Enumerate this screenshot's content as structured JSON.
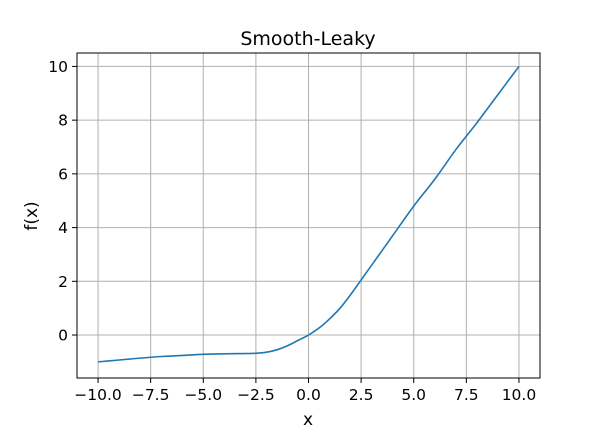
{
  "chart_data": {
    "type": "line",
    "title": "Smooth-Leaky",
    "xlabel": "x",
    "ylabel": "f(x)",
    "xlim": [
      -11,
      11
    ],
    "ylim": [
      -1.6,
      10.5
    ],
    "grid": true,
    "x_ticks": [
      -10.0,
      -7.5,
      -5.0,
      -2.5,
      0.0,
      2.5,
      5.0,
      7.5,
      10.0
    ],
    "x_tick_labels": [
      "−10.0",
      "−7.5",
      "−5.0",
      "−2.5",
      "0.0",
      "2.5",
      "5.0",
      "7.5",
      "10.0"
    ],
    "y_ticks": [
      0,
      2,
      4,
      6,
      8,
      10
    ],
    "y_tick_labels": [
      "0",
      "2",
      "4",
      "6",
      "8",
      "10"
    ],
    "series": [
      {
        "color": "#1f77b4",
        "x": [
          -10,
          -9,
          -8,
          -7,
          -6,
          -5,
          -4,
          -3,
          -2.5,
          -2,
          -1.5,
          -1,
          -0.5,
          0,
          0.5,
          1,
          1.5,
          2,
          2.5,
          3,
          3.5,
          4,
          5,
          6,
          7,
          8,
          9,
          10
        ],
        "y": [
          -1.0,
          -0.93,
          -0.86,
          -0.8,
          -0.76,
          -0.72,
          -0.7,
          -0.69,
          -0.68,
          -0.64,
          -0.55,
          -0.4,
          -0.2,
          0.0,
          0.26,
          0.6,
          1.0,
          1.5,
          2.05,
          2.6,
          3.15,
          3.7,
          4.8,
          5.8,
          6.9,
          7.9,
          8.95,
          10.0
        ]
      }
    ]
  }
}
